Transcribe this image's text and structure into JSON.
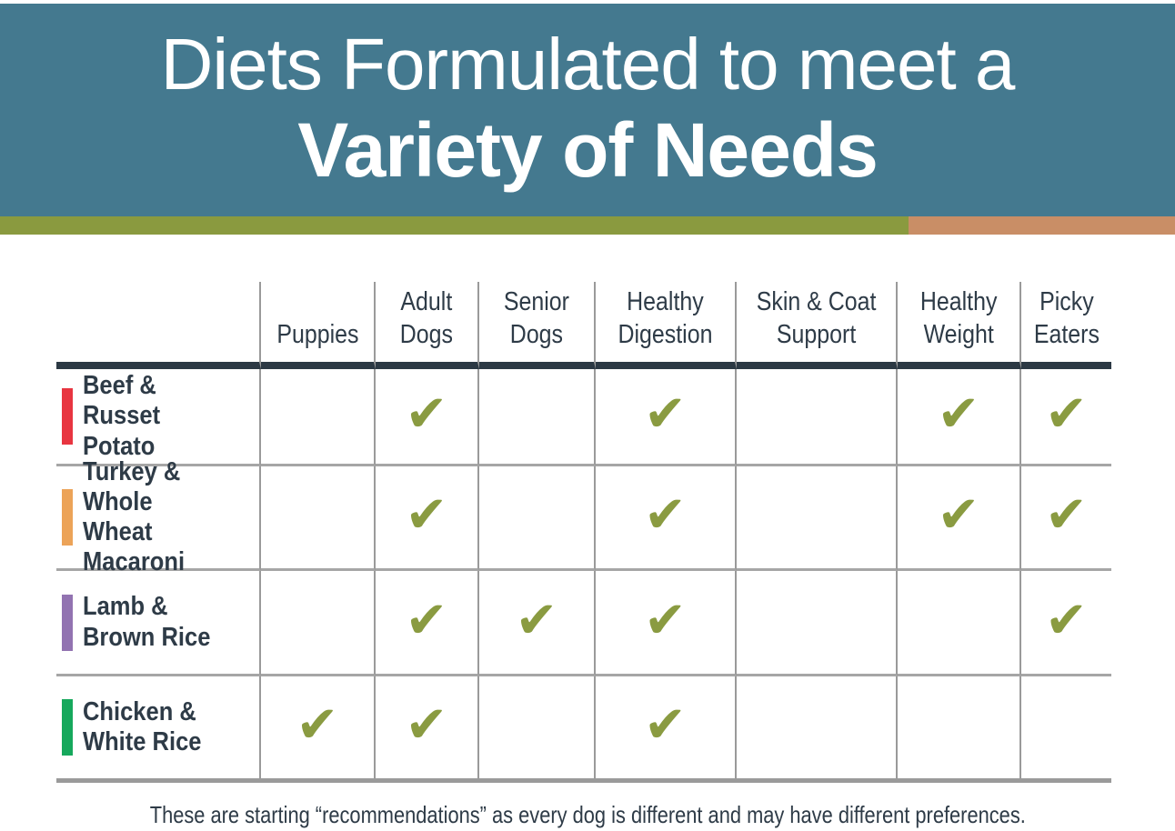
{
  "header": {
    "title_line1": "Diets Formulated to meet a",
    "title_line2": "Variety of Needs",
    "background_color": "#44798f",
    "stripe_green_color": "#8a9a3f",
    "stripe_tan_color": "#c98e66"
  },
  "table": {
    "columns": [
      "",
      "Puppies",
      "Adult\nDogs",
      "Senior\nDogs",
      "Healthy\nDigestion",
      "Skin & Coat\nSupport",
      "Healthy\nWeight",
      "Picky\nEaters"
    ],
    "rows": [
      {
        "label_line1": "Beef &",
        "label_line2": "Russet Potato",
        "accent_color": "#e83540",
        "checks": [
          false,
          true,
          false,
          true,
          false,
          true,
          true
        ]
      },
      {
        "label_line1": "Turkey & Whole",
        "label_line2": "Wheat Macaroni",
        "accent_color": "#eca358",
        "checks": [
          false,
          true,
          false,
          true,
          false,
          true,
          true
        ]
      },
      {
        "label_line1": "Lamb &",
        "label_line2": "Brown Rice",
        "accent_color": "#9273b1",
        "checks": [
          false,
          true,
          true,
          true,
          false,
          false,
          true
        ]
      },
      {
        "label_line1": "Chicken &",
        "label_line2": "White Rice",
        "accent_color": "#16a85c",
        "checks": [
          true,
          true,
          false,
          true,
          false,
          false,
          false
        ]
      }
    ],
    "check_glyph": "✔",
    "check_color": "#8a9b41",
    "text_color": "#2e3b47",
    "header_rule_color": "#2c3944",
    "gridline_color": "#9a9a9a"
  },
  "footer": {
    "note": "These are starting “recommendations” as every dog is different and may have different preferences."
  }
}
